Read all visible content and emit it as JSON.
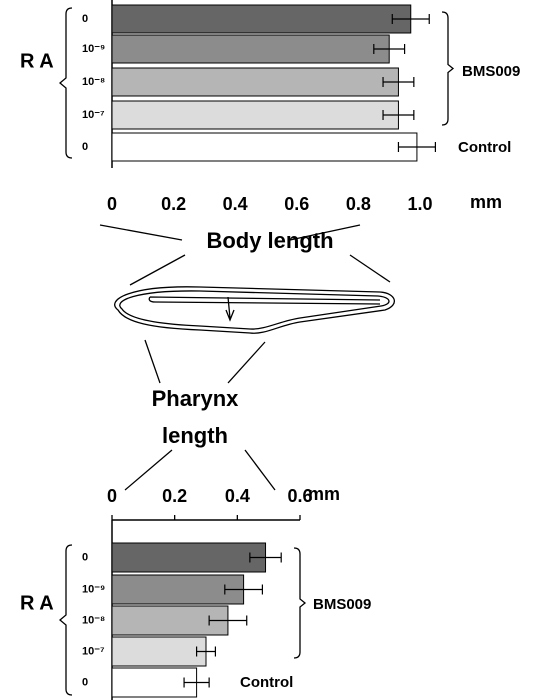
{
  "chart_data": [
    {
      "type": "hbar",
      "x_label": "Body length",
      "x_unit": "mm",
      "categories": [
        "0",
        "10⁻⁹",
        "10⁻⁸",
        "10⁻⁷",
        "0"
      ],
      "values": [
        0.97,
        0.9,
        0.93,
        0.93,
        0.99
      ],
      "errors": [
        0.06,
        0.05,
        0.05,
        0.05,
        0.06
      ],
      "colors": [
        "#666666",
        "#8c8c8c",
        "#b5b5b5",
        "#dcdcdc",
        "#ffffff"
      ],
      "xlim": [
        0,
        1
      ],
      "xticks": [
        0,
        0.2,
        0.4,
        0.6,
        0.8,
        {
          "value": 1,
          "label": "1.0"
        }
      ],
      "group_left": "R A",
      "group_treated": "BMS009",
      "group_control": "Control"
    },
    {
      "type": "hbar",
      "x_label_lines": [
        "Pharynx",
        "length"
      ],
      "x_unit": "mm",
      "categories": [
        "0",
        "10⁻⁹",
        "10⁻⁸",
        "10⁻⁷",
        "0"
      ],
      "values": [
        0.49,
        0.42,
        0.37,
        0.3,
        0.27
      ],
      "errors": [
        0.05,
        0.06,
        0.06,
        0.03,
        0.04
      ],
      "colors": [
        "#666666",
        "#8c8c8c",
        "#b5b5b5",
        "#dcdcdc",
        "#ffffff"
      ],
      "xlim": [
        0,
        0.6
      ],
      "xticks": [
        0,
        0.2,
        0.4,
        0.6
      ],
      "group_left": "R A",
      "group_treated": "BMS009",
      "group_control": "Control"
    }
  ]
}
